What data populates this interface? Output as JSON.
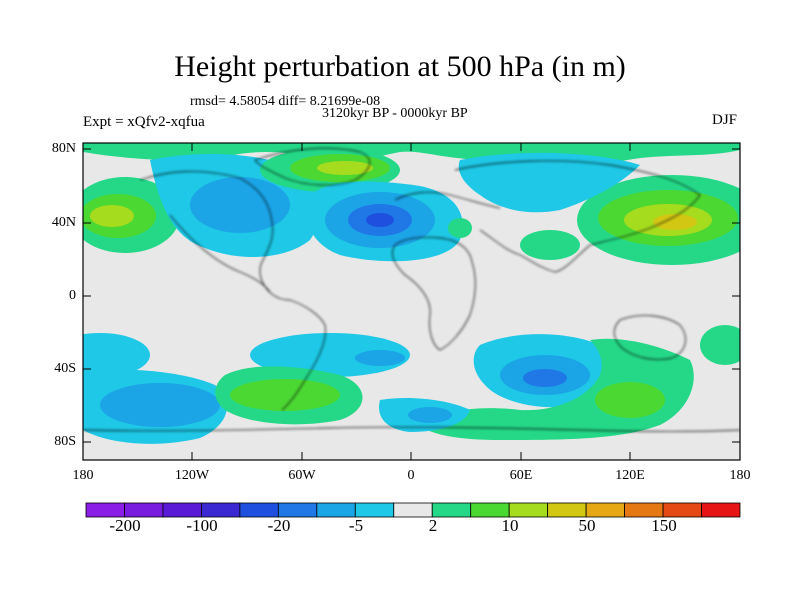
{
  "title": "Height perturbation at 500 hPa (in m)",
  "stats_line": "rmsd= 4.58054 diff= 8.21699e-08",
  "period": "3120kyr BP - 0000kyr BP",
  "expt": "Expt = xQfv2-xqfua",
  "season": "DJF",
  "lat_labels": [
    "80N",
    "40N",
    "0",
    "40S",
    "80S"
  ],
  "lon_labels": [
    "180",
    "120W",
    "60W",
    "0",
    "60E",
    "120E",
    "180"
  ],
  "colorbar": {
    "colors": [
      "#8b1ee6",
      "#7a1ce0",
      "#5a1ad6",
      "#3c28d2",
      "#1f4fde",
      "#1f78e6",
      "#1ba4e6",
      "#1ec8e6",
      "#e8e8e8",
      "#24d888",
      "#4cd832",
      "#a6dc1e",
      "#d2c814",
      "#e6a814",
      "#e67814",
      "#e64a14",
      "#e61414"
    ],
    "labels": [
      "-200",
      "-100",
      "-20",
      "-5",
      "2",
      "10",
      "50",
      "150"
    ]
  }
}
